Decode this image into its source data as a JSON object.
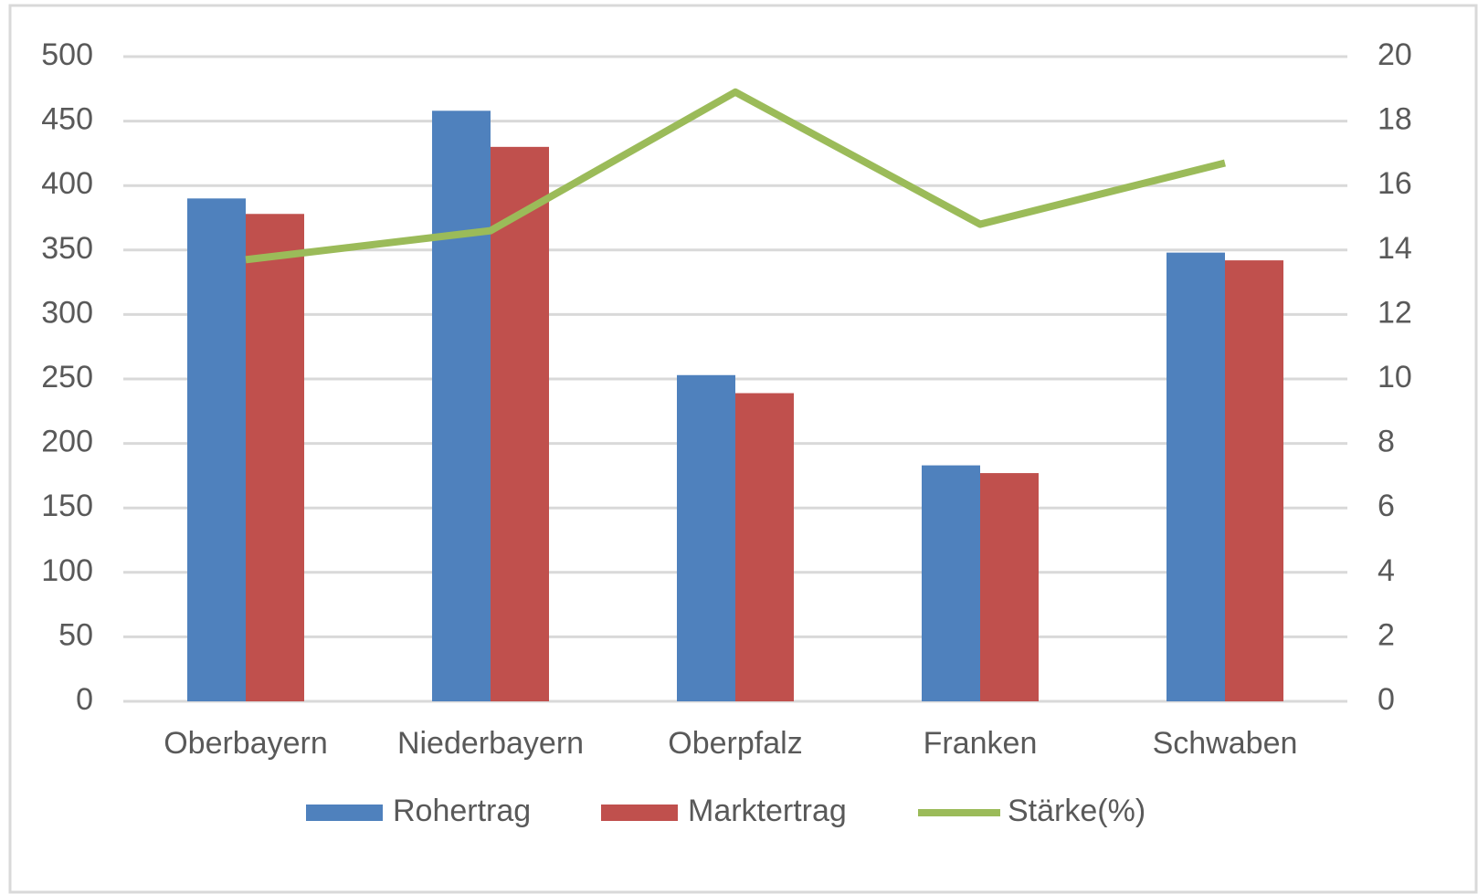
{
  "chart_data": {
    "type": "bar",
    "categories": [
      "Oberbayern",
      "Niederbayern",
      "Oberpfalz",
      "Franken",
      "Schwaben"
    ],
    "series": [
      {
        "name": "Rohertrag",
        "color": "#4f81bd",
        "values": [
          390,
          458,
          253,
          183,
          348
        ]
      },
      {
        "name": "Marktertrag",
        "color": "#c0504d",
        "values": [
          378,
          430,
          239,
          177,
          342
        ]
      },
      {
        "name": "Stärke(%)",
        "color": "#9bbb59",
        "type": "line",
        "axis": "y2",
        "values": [
          13.7,
          14.6,
          18.9,
          14.8,
          16.7
        ]
      }
    ],
    "ylim": [
      0,
      500
    ],
    "yticks": [
      0,
      50,
      100,
      150,
      200,
      250,
      300,
      350,
      400,
      450,
      500
    ],
    "y2lim": [
      0,
      20
    ],
    "y2ticks": [
      0,
      2,
      4,
      6,
      8,
      10,
      12,
      14,
      16,
      18,
      20
    ],
    "grid": true,
    "legend": "bottom"
  }
}
